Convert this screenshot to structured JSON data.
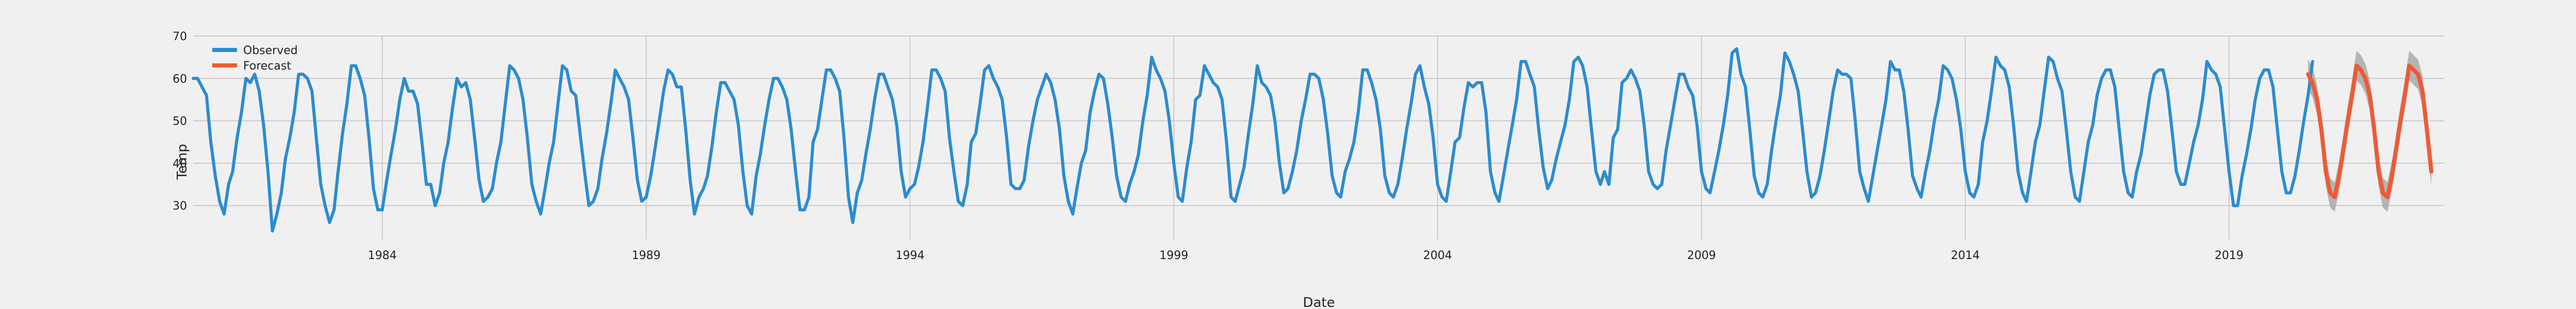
{
  "chart_data": {
    "type": "line",
    "title": "",
    "xlabel": "Date",
    "ylabel": "Temp",
    "xlim": [
      "1980-06-01",
      "2023-02-01"
    ],
    "ylim": [
      22,
      70
    ],
    "x_ticks": [
      "1984",
      "1989",
      "1994",
      "1999",
      "2004",
      "2009",
      "2014",
      "2019"
    ],
    "y_ticks": [
      30,
      40,
      50,
      60,
      70
    ],
    "grid": true,
    "legend": {
      "placement": "top-left",
      "entries": [
        "Observed",
        "Forecast"
      ]
    },
    "colors": {
      "Observed": "#2b8cd0",
      "Forecast": "#ee5b35",
      "band": "#a9a9a9"
    },
    "series": [
      {
        "name": "Observed",
        "start": "1980-06",
        "freq": "monthly",
        "values": [
          60,
          60,
          58,
          56,
          45,
          37,
          31,
          28,
          35,
          38,
          46,
          52,
          60,
          59,
          61,
          57,
          49,
          38,
          24,
          28,
          33,
          41,
          46,
          52,
          61,
          61,
          60,
          57,
          46,
          35,
          30,
          26,
          29,
          38,
          47,
          54,
          63,
          63,
          60,
          56,
          46,
          34,
          29,
          29,
          36,
          42,
          48,
          55,
          60,
          57,
          57,
          54,
          45,
          35,
          35,
          30,
          33,
          40,
          45,
          53,
          60,
          58,
          59,
          55,
          46,
          36,
          31,
          32,
          34,
          40,
          45,
          54,
          63,
          62,
          60,
          55,
          46,
          35,
          31,
          28,
          34,
          40,
          45,
          54,
          63,
          62,
          57,
          56,
          47,
          38,
          30,
          31,
          34,
          41,
          47,
          54,
          62,
          60,
          58,
          55,
          46,
          36,
          31,
          32,
          37,
          43,
          50,
          57,
          62,
          61,
          58,
          58,
          48,
          36,
          28,
          32,
          34,
          37,
          44,
          52,
          59,
          59,
          57,
          55,
          49,
          38,
          30,
          28,
          37,
          42,
          49,
          55,
          60,
          60,
          58,
          55,
          48,
          38,
          29,
          29,
          32,
          45,
          48,
          55,
          62,
          62,
          60,
          57,
          46,
          32,
          26,
          33,
          36,
          42,
          48,
          55,
          61,
          61,
          58,
          55,
          49,
          38,
          32,
          34,
          35,
          39,
          45,
          53,
          62,
          62,
          60,
          57,
          46,
          38,
          31,
          30,
          35,
          45,
          47,
          54,
          62,
          63,
          60,
          58,
          55,
          46,
          35,
          34,
          34,
          36,
          44,
          50,
          55,
          58,
          61,
          59,
          55,
          48,
          37,
          31,
          28,
          34,
          40,
          43,
          52,
          57,
          61,
          60,
          54,
          46,
          37,
          32,
          31,
          35,
          38,
          42,
          50,
          56,
          65,
          62,
          60,
          57,
          50,
          40,
          32,
          31,
          39,
          45,
          55,
          56,
          63,
          61,
          59,
          58,
          55,
          45,
          32,
          31,
          35,
          39,
          47,
          54,
          63,
          59,
          58,
          56,
          50,
          40,
          33,
          34,
          38,
          43,
          50,
          55,
          61,
          61,
          60,
          55,
          47,
          37,
          33,
          32,
          38,
          41,
          45,
          52,
          62,
          62,
          59,
          55,
          48,
          37,
          33,
          32,
          35,
          41,
          48,
          54,
          61,
          63,
          58,
          54,
          46,
          35,
          32,
          31,
          38,
          45,
          46,
          53,
          59,
          58,
          59,
          59,
          52,
          38,
          33,
          31,
          37,
          43,
          49,
          55,
          64,
          64,
          61,
          58,
          48,
          39,
          34,
          36,
          41,
          45,
          49,
          55,
          64,
          65,
          63,
          58,
          48,
          38,
          35,
          38,
          35,
          46,
          48,
          59,
          60,
          62,
          60,
          57,
          49,
          38,
          35,
          34,
          35,
          43,
          49,
          55,
          61,
          61,
          58,
          56,
          49,
          38,
          34,
          33,
          38,
          43,
          49,
          56,
          66,
          67,
          61,
          58,
          48,
          37,
          33,
          32,
          35,
          43,
          50,
          56,
          66,
          64,
          61,
          57,
          48,
          38,
          32,
          33,
          37,
          43,
          50,
          57,
          62,
          61,
          61,
          60,
          50,
          38,
          34,
          31,
          37,
          43,
          49,
          55,
          64,
          62,
          62,
          57,
          48,
          37,
          34,
          32,
          38,
          43,
          50,
          55,
          63,
          62,
          60,
          55,
          48,
          38,
          33,
          32,
          35,
          45,
          50,
          57,
          65,
          63,
          62,
          58,
          49,
          38,
          33,
          31,
          38,
          45,
          49,
          57,
          65,
          64,
          60,
          57,
          48,
          38,
          32,
          31,
          38,
          45,
          49,
          56,
          60,
          62,
          62,
          58,
          48,
          38,
          33,
          32,
          38,
          42,
          49,
          56,
          61,
          62,
          62,
          57,
          48,
          38,
          35,
          35,
          40,
          45,
          49,
          55,
          64,
          62,
          61,
          58,
          48,
          38,
          30,
          30,
          37,
          42,
          48,
          55,
          60,
          62,
          62,
          58,
          48,
          38,
          33,
          33,
          37,
          43,
          50,
          56,
          64
        ]
      },
      {
        "name": "Forecast",
        "start": "2020-07",
        "freq": "monthly",
        "values": [
          61,
          59,
          55,
          48,
          38,
          33,
          32,
          37,
          43,
          50,
          56,
          63,
          62,
          60,
          56,
          48,
          38,
          33,
          32,
          37,
          43,
          50,
          56,
          63,
          62,
          61,
          57,
          48,
          38
        ],
        "band_width": 3.5
      }
    ]
  }
}
